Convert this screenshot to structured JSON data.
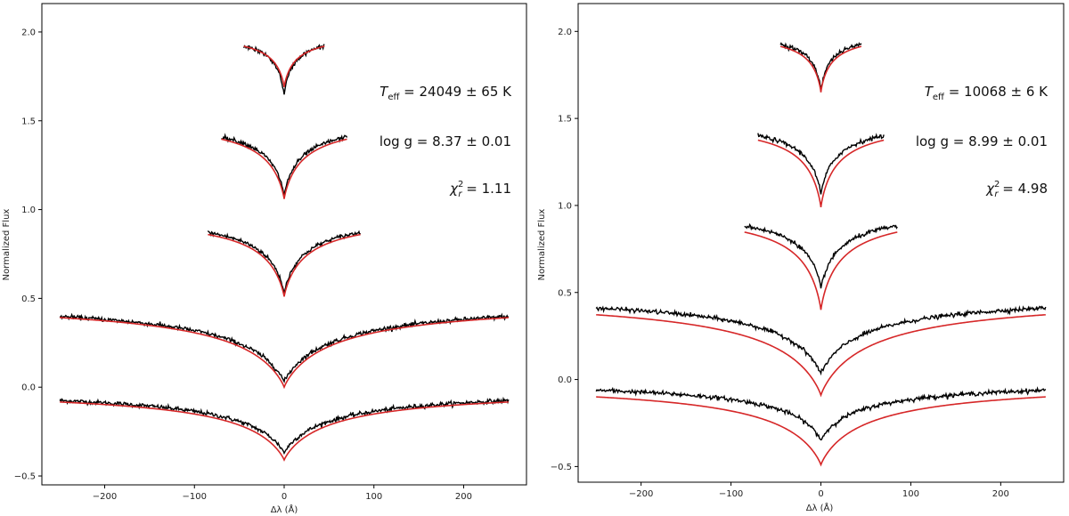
{
  "chart_data": [
    {
      "type": "line",
      "xlabel": "Δλ (Å)",
      "ylabel": "Normalized Flux",
      "xlim": [
        -270,
        270
      ],
      "ylim": [
        -0.55,
        2.16
      ],
      "xticks": [
        -200,
        -100,
        0,
        100,
        200
      ],
      "xtick_labels": [
        "−200",
        "−100",
        "0",
        "100",
        "200"
      ],
      "yticks": [
        -0.5,
        0.0,
        0.5,
        1.0,
        1.5,
        2.0
      ],
      "ytick_labels": [
        "−0.5",
        "0.0",
        "0.5",
        "1.0",
        "1.5",
        "2.0"
      ],
      "annotations": {
        "teff_label": "T",
        "teff_sub": "eff",
        "teff_value": " = 24049 ± 65 K",
        "logg_label": "log g",
        "logg_value": " = 8.37 ± 0.01",
        "chi_label": "χ",
        "chi_sup": "2",
        "chi_sub": "r",
        "chi_value": " = 1.11"
      },
      "model_color": "#d62728",
      "obs_color": "#000000",
      "series": [
        {
          "half_width": 250,
          "continuum": 0.0,
          "depth": 0.41,
          "width": 55,
          "obs_depth": 0.37,
          "obs_width": 55
        },
        {
          "half_width": 250,
          "continuum": 0.5,
          "depth": 0.5,
          "width": 60,
          "obs_depth": 0.47,
          "obs_width": 60
        },
        {
          "half_width": 85,
          "continuum": 0.98,
          "depth": 0.47,
          "width": 26,
          "obs_depth": 0.45,
          "obs_width": 24
        },
        {
          "half_width": 70,
          "continuum": 1.52,
          "depth": 0.46,
          "width": 23,
          "obs_depth": 0.44,
          "obs_width": 21
        },
        {
          "half_width": 45,
          "continuum": 2.0,
          "depth": 0.31,
          "width": 14,
          "obs_depth": 0.36,
          "obs_width": 11
        }
      ]
    },
    {
      "type": "line",
      "xlabel": "Δλ (Å)",
      "ylabel": "Normalized Flux",
      "xlim": [
        -270,
        270
      ],
      "ylim": [
        -0.59,
        2.16
      ],
      "xticks": [
        -200,
        -100,
        0,
        100,
        200
      ],
      "xtick_labels": [
        "−200",
        "−100",
        "0",
        "100",
        "200"
      ],
      "yticks": [
        -0.5,
        0.0,
        0.5,
        1.0,
        1.5,
        2.0
      ],
      "ytick_labels": [
        "−0.5",
        "0.0",
        "0.5",
        "1.0",
        "1.5",
        "2.0"
      ],
      "annotations": {
        "teff_label": "T",
        "teff_sub": "eff",
        "teff_value": " = 10068 ± 6 K",
        "logg_label": "log g",
        "logg_value": " = 8.99 ± 0.01",
        "chi_label": "χ",
        "chi_sup": "2",
        "chi_sub": "r",
        "chi_value": " = 4.98"
      },
      "model_color": "#d62728",
      "obs_color": "#000000",
      "series": [
        {
          "half_width": 250,
          "continuum": 0.0,
          "depth": 0.49,
          "width": 55,
          "obs_depth": 0.35,
          "obs_width": 45
        },
        {
          "half_width": 250,
          "continuum": 0.5,
          "depth": 0.59,
          "width": 60,
          "obs_depth": 0.47,
          "obs_width": 50
        },
        {
          "half_width": 85,
          "continuum": 0.99,
          "depth": 0.59,
          "width": 24,
          "obs_depth": 0.47,
          "obs_width": 22
        },
        {
          "half_width": 70,
          "continuum": 1.5,
          "depth": 0.51,
          "width": 20,
          "obs_depth": 0.44,
          "obs_width": 18
        },
        {
          "half_width": 45,
          "continuum": 2.0,
          "depth": 0.35,
          "width": 13,
          "obs_depth": 0.34,
          "obs_width": 11
        }
      ]
    }
  ]
}
